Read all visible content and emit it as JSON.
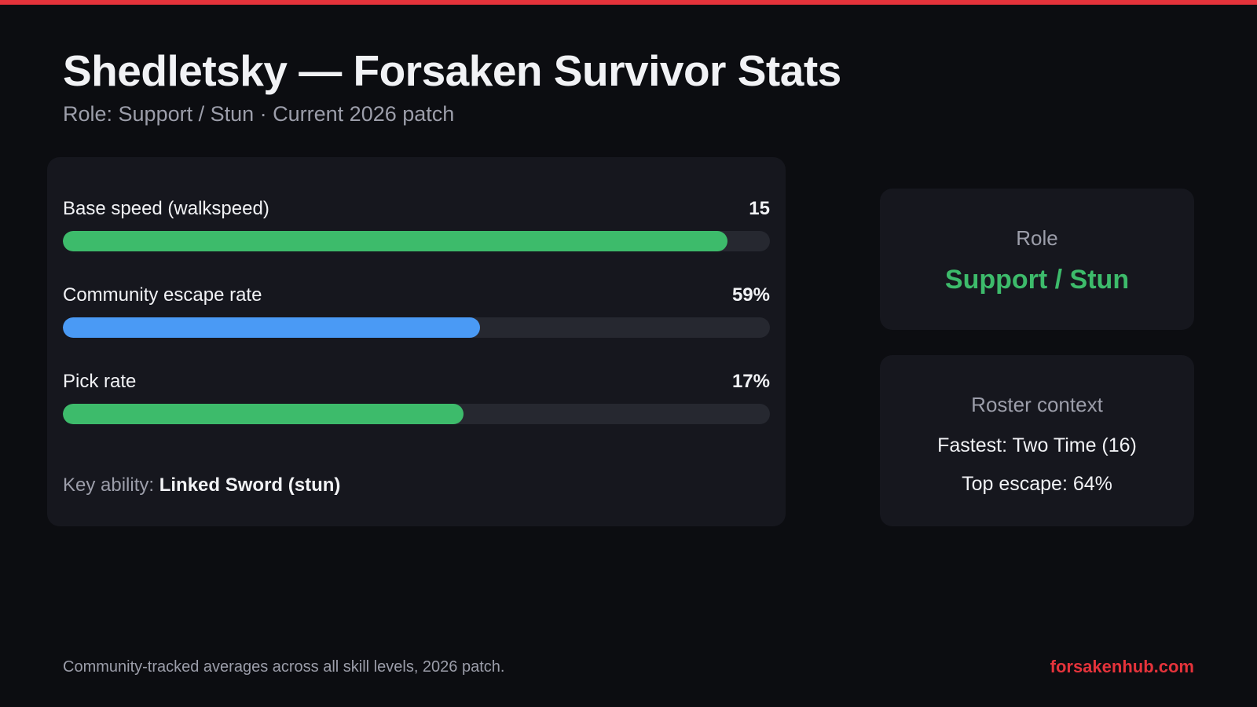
{
  "colors": {
    "accent_red": "#e5333b",
    "bar_green": "#3dbb6b",
    "bar_blue": "#4a9af5",
    "role_green": "#3dbb6b"
  },
  "header": {
    "title": "Shedletsky — Forsaken Survivor Stats",
    "subtitle": "Role: Support / Stun · Current 2026 patch"
  },
  "stats": [
    {
      "label": "Base speed (walkspeed)",
      "value": "15",
      "fill_fraction": 0.94,
      "color": "#3dbb6b"
    },
    {
      "label": "Community escape rate",
      "value": "59%",
      "fill_fraction": 0.59,
      "color": "#4a9af5"
    },
    {
      "label": "Pick rate",
      "value": "17%",
      "fill_fraction": 0.567,
      "color": "#3dbb6b"
    }
  ],
  "ability": {
    "label": "Key ability: ",
    "value": "Linked Sword (stun)"
  },
  "role_card": {
    "title": "Role",
    "value": "Support / Stun"
  },
  "roster_card": {
    "title": "Roster context",
    "fastest": "Fastest: Two Time (16)",
    "top_escape": "Top escape: 64%"
  },
  "footer": {
    "note": "Community-tracked averages across all skill levels, 2026 patch.",
    "site": "forsakenhub.com"
  }
}
